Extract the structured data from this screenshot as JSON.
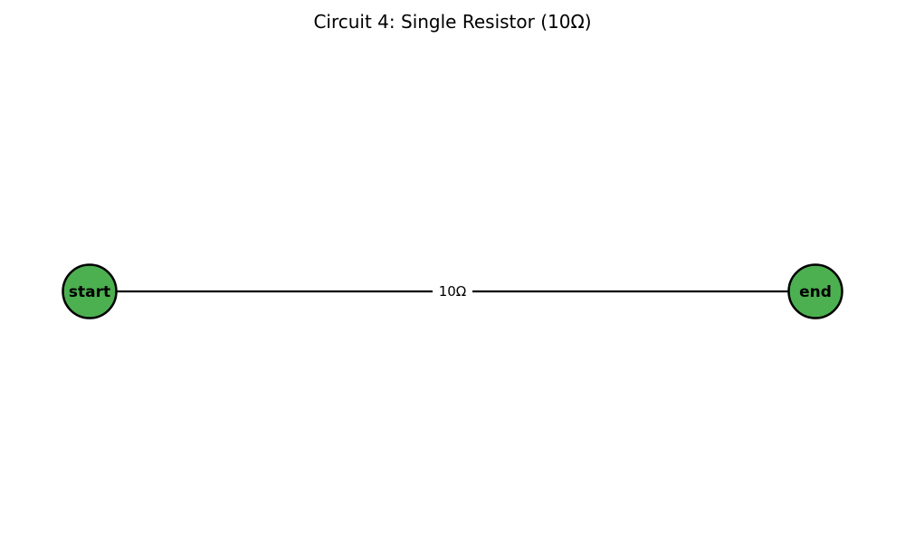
{
  "diagram": {
    "title": "Circuit 4: Single Resistor (10Ω)",
    "colors": {
      "node_fill": "#4caf50",
      "node_stroke": "#000000",
      "edge": "#000000",
      "background": "#ffffff"
    },
    "nodes": [
      {
        "id": "start",
        "label": "start"
      },
      {
        "id": "end",
        "label": "end"
      }
    ],
    "edges": [
      {
        "from": "start",
        "to": "end",
        "label": "10Ω"
      }
    ]
  }
}
